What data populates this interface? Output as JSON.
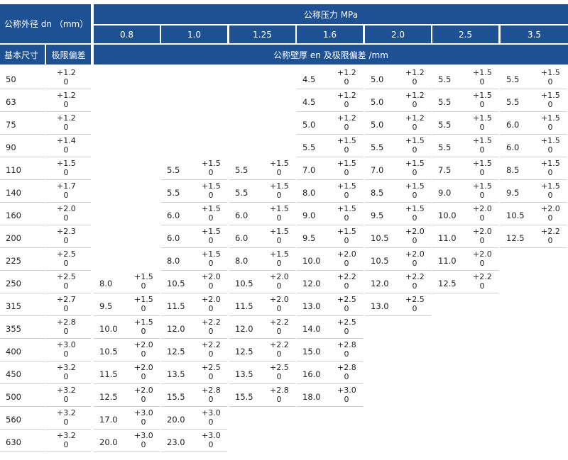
{
  "header": {
    "dn_label": "公称外径 dn （mm）",
    "base_size_label": "基本尺寸",
    "tolerance_label": "极限偏差",
    "pressure_label": "公称压力 MPa",
    "wall_label": "公称壁厚 en 及极限偏差 /mm"
  },
  "pressures": [
    "0.8",
    "1.0",
    "1.25",
    "1.6",
    "2.0",
    "2.5",
    "3.5"
  ],
  "rows": [
    {
      "dn": "50",
      "tol_up": "+1.2",
      "tol_low": "0",
      "cells": [
        null,
        null,
        null,
        [
          "4.5",
          "+1.2",
          "0"
        ],
        [
          "5.0",
          "+1.2",
          "0"
        ],
        [
          "5.5",
          "+1.5",
          "0"
        ],
        [
          "5.5",
          "+1.5",
          "0"
        ]
      ]
    },
    {
      "dn": "63",
      "tol_up": "+1.2",
      "tol_low": "0",
      "cells": [
        null,
        null,
        null,
        [
          "4.5",
          "+1.2",
          "0"
        ],
        [
          "5.0",
          "+1.2",
          "0"
        ],
        [
          "5.5",
          "+1.5",
          "0"
        ],
        [
          "5.5",
          "+1.5",
          "0"
        ]
      ]
    },
    {
      "dn": "75",
      "tol_up": "+1.2",
      "tol_low": "0",
      "cells": [
        null,
        null,
        null,
        [
          "5.0",
          "+1.2",
          "0"
        ],
        [
          "5.0",
          "+1.2",
          "0"
        ],
        [
          "5.5",
          "+1.5",
          "0"
        ],
        [
          "6.0",
          "+1.5",
          "0"
        ]
      ]
    },
    {
      "dn": "90",
      "tol_up": "+1.4",
      "tol_low": "0",
      "cells": [
        null,
        null,
        null,
        [
          "5.5",
          "+1.5",
          "0"
        ],
        [
          "5.5",
          "+1.5",
          "0"
        ],
        [
          "5.5",
          "+1.5",
          "0"
        ],
        [
          "6.0",
          "+1.5",
          "0"
        ]
      ]
    },
    {
      "dn": "110",
      "tol_up": "+1.5",
      "tol_low": "0",
      "cells": [
        null,
        [
          "5.5",
          "+1.5",
          "0"
        ],
        [
          "5.5",
          "+1.5",
          "0"
        ],
        [
          "7.0",
          "+1.5",
          "0"
        ],
        [
          "7.0",
          "+1.5",
          "0"
        ],
        [
          "7.5",
          "+1.5",
          "0"
        ],
        [
          "8.5",
          "+1.5",
          "0"
        ]
      ]
    },
    {
      "dn": "140",
      "tol_up": "+1.7",
      "tol_low": "0",
      "cells": [
        null,
        [
          "5.5",
          "+1.5",
          "0"
        ],
        [
          "5.5",
          "+1.5",
          "0"
        ],
        [
          "8.0",
          "+1.5",
          "0"
        ],
        [
          "8.5",
          "+1.5",
          "0"
        ],
        [
          "9.0",
          "+1.5",
          "0"
        ],
        [
          "9.5",
          "+1.5",
          "0"
        ]
      ]
    },
    {
      "dn": "160",
      "tol_up": "+2.0",
      "tol_low": "0",
      "cells": [
        null,
        [
          "6.0",
          "+1.5",
          "0"
        ],
        [
          "6.0",
          "+1.5",
          "0"
        ],
        [
          "9.0",
          "+1.5",
          "0"
        ],
        [
          "9.5",
          "+1.5",
          "0"
        ],
        [
          "10.0",
          "+2.0",
          "0"
        ],
        [
          "10.5",
          "+2.0",
          "0"
        ]
      ]
    },
    {
      "dn": "200",
      "tol_up": "+2.3",
      "tol_low": "0",
      "cells": [
        null,
        [
          "6.0",
          "+1.5",
          "0"
        ],
        [
          "6.0",
          "+1.5",
          "0"
        ],
        [
          "9.5",
          "+1.5",
          "0"
        ],
        [
          "10.5",
          "+2.0",
          "0"
        ],
        [
          "11.0",
          "+2.0",
          "0"
        ],
        [
          "12.5",
          "+2.2",
          "0"
        ]
      ]
    },
    {
      "dn": "225",
      "tol_up": "+2.5",
      "tol_low": "0",
      "cells": [
        null,
        [
          "8.0",
          "+1.5",
          "0"
        ],
        [
          "8.0",
          "+1.5",
          "0"
        ],
        [
          "10.0",
          "+2.0",
          "0"
        ],
        [
          "10.5",
          "+2.0",
          "0"
        ],
        [
          "11.0",
          "+2.0",
          "0"
        ],
        null
      ]
    },
    {
      "dn": "250",
      "tol_up": "+2.5",
      "tol_low": "0",
      "cells": [
        [
          "8.0",
          "+1.5",
          "0"
        ],
        [
          "10.5",
          "+2.0",
          "0"
        ],
        [
          "10.5",
          "+2.0",
          "0"
        ],
        [
          "12.0",
          "+2.2",
          "0"
        ],
        [
          "12.0",
          "+2.2",
          "0"
        ],
        [
          "12.5",
          "+2.2",
          "0"
        ],
        null
      ]
    },
    {
      "dn": "315",
      "tol_up": "+2.7",
      "tol_low": "0",
      "cells": [
        [
          "9.5",
          "+1.5",
          "0"
        ],
        [
          "11.5",
          "+2.0",
          "0"
        ],
        [
          "11.5",
          "+2.0",
          "0"
        ],
        [
          "13.0",
          "+2.5",
          "0"
        ],
        [
          "13.0",
          "+2.5",
          "0"
        ],
        null,
        null
      ]
    },
    {
      "dn": "355",
      "tol_up": "+2.8",
      "tol_low": "0",
      "cells": [
        [
          "10.0",
          "+1.5",
          "0"
        ],
        [
          "12.0",
          "+2.2",
          "0"
        ],
        [
          "12.0",
          "+2.2",
          "0"
        ],
        [
          "14.0",
          "+2.5",
          "0"
        ],
        null,
        null,
        null
      ]
    },
    {
      "dn": "400",
      "tol_up": "+3.0",
      "tol_low": "0",
      "cells": [
        [
          "10.5",
          "+2.0",
          "0"
        ],
        [
          "12.5",
          "+2.2",
          "0"
        ],
        [
          "12.5",
          "+2.2",
          "0"
        ],
        [
          "15.0",
          "+2.8",
          "0"
        ],
        null,
        null,
        null
      ]
    },
    {
      "dn": "450",
      "tol_up": "+3.2",
      "tol_low": "0",
      "cells": [
        [
          "11.5",
          "+2.0",
          "0"
        ],
        [
          "13.5",
          "+2.5",
          "0"
        ],
        [
          "13.5",
          "+2.5",
          "0"
        ],
        [
          "16.0",
          "+2.8",
          "0"
        ],
        null,
        null,
        null
      ]
    },
    {
      "dn": "500",
      "tol_up": "+3.2",
      "tol_low": "0",
      "cells": [
        [
          "12.5",
          "+2.0",
          "0"
        ],
        [
          "15.5",
          "+2.8",
          "0"
        ],
        [
          "15.5",
          "+2.8",
          "0"
        ],
        [
          "18.0",
          "+3.0",
          "0"
        ],
        null,
        null,
        null
      ]
    },
    {
      "dn": "560",
      "tol_up": "+3.2",
      "tol_low": "0",
      "cells": [
        [
          "17.0",
          "+3.0",
          "0"
        ],
        [
          "20.0",
          "+3.0",
          "0"
        ],
        null,
        null,
        null,
        null,
        null
      ]
    },
    {
      "dn": "630",
      "tol_up": "+3.2",
      "tol_low": "0",
      "cells": [
        [
          "20.0",
          "+3.0",
          "0"
        ],
        [
          "23.0",
          "+3.0",
          "0"
        ],
        null,
        null,
        null,
        null,
        null
      ]
    }
  ]
}
